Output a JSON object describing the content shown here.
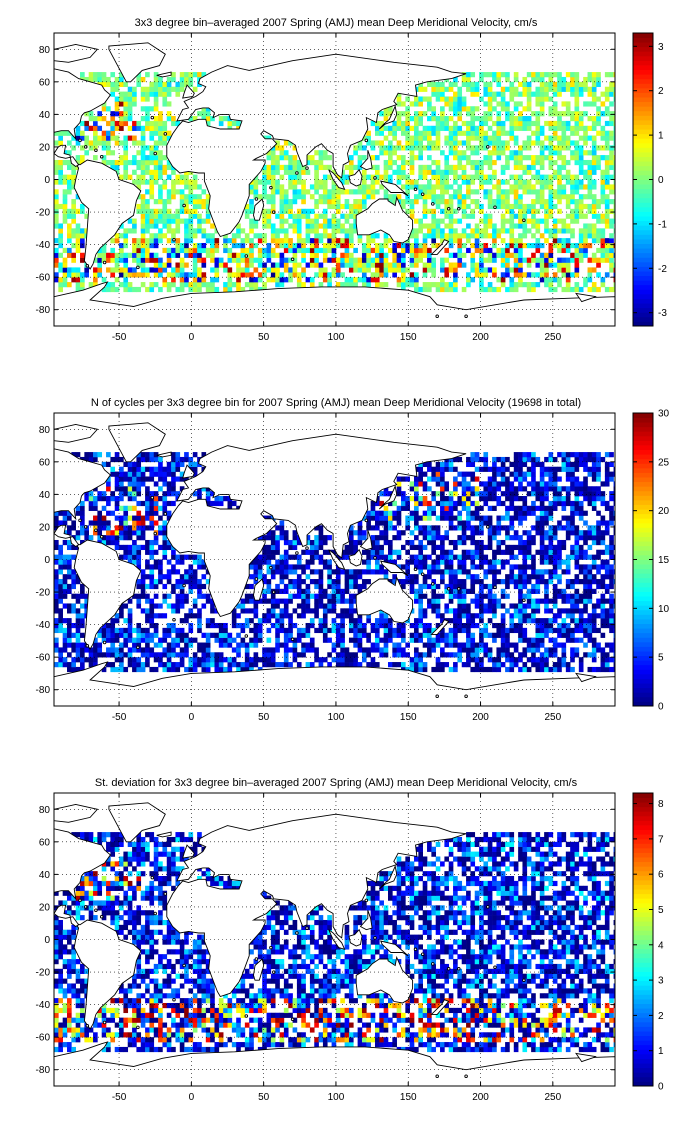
{
  "colormap": "jet",
  "land_color": "#ffffff",
  "coastline_color": "#000000",
  "chart_data": [
    {
      "type": "heatmap",
      "title": "3x3 degree bin–averaged 2007 Spring (AMJ) mean Deep Meridional Velocity, cm/s",
      "xlim": [
        -95,
        293
      ],
      "ylim": [
        -90,
        90
      ],
      "xticks": [
        -50,
        0,
        50,
        100,
        150,
        200,
        250
      ],
      "yticks": [
        -80,
        -60,
        -40,
        -20,
        0,
        20,
        40,
        60,
        80
      ],
      "grid": true,
      "grid_style": "dotted",
      "bin_size_deg": 3,
      "colorbar": {
        "min": -3.3,
        "max": 3.3,
        "ticks": [
          -3,
          -2,
          -1,
          0,
          1,
          2,
          3
        ]
      },
      "field_summary": "Scattered positive and negative bins; strongest (|v| near 3) along the Southern Ocean band near 40–60°S and western North Atlantic; mostly weak values (near 0) in the Pacific interior."
    },
    {
      "type": "heatmap",
      "title": "N of cycles per 3x3 degree bin for 2007 Spring (AMJ) mean Deep Meridional Velocity (19698 in total)",
      "xlim": [
        -95,
        293
      ],
      "ylim": [
        -90,
        90
      ],
      "xticks": [
        -50,
        0,
        50,
        100,
        150,
        200,
        250
      ],
      "yticks": [
        -80,
        -60,
        -40,
        -20,
        0,
        20,
        40,
        60,
        80
      ],
      "grid": true,
      "grid_style": "dotted",
      "bin_size_deg": 3,
      "colorbar": {
        "min": 0,
        "max": 30,
        "ticks": [
          0,
          5,
          10,
          15,
          20,
          25,
          30
        ]
      },
      "field_summary": "Most bins hold 1–8 cycles; higher counts (15–30) in the northwest Pacific near 30–50°N and in the North Atlantic."
    },
    {
      "type": "heatmap",
      "title": "St. deviation for 3x3 degree bin–averaged 2007 Spring (AMJ) mean Deep Meridional Velocity, cm/s",
      "xlim": [
        -95,
        293
      ],
      "ylim": [
        -90,
        90
      ],
      "xticks": [
        -50,
        0,
        50,
        100,
        150,
        200,
        250
      ],
      "yticks": [
        -80,
        -60,
        -40,
        -20,
        0,
        20,
        40,
        60,
        80
      ],
      "grid": true,
      "grid_style": "dotted",
      "bin_size_deg": 3,
      "colorbar": {
        "min": 0,
        "max": 8.3,
        "ticks": [
          0,
          1,
          2,
          3,
          4,
          5,
          6,
          7,
          8
        ]
      },
      "field_summary": "Mostly 0.5–3 cm/s; high variability (6–8 cm/s) in the Gulf Stream, Agulhas retroflection and Southern Ocean near 40–60°S."
    }
  ]
}
